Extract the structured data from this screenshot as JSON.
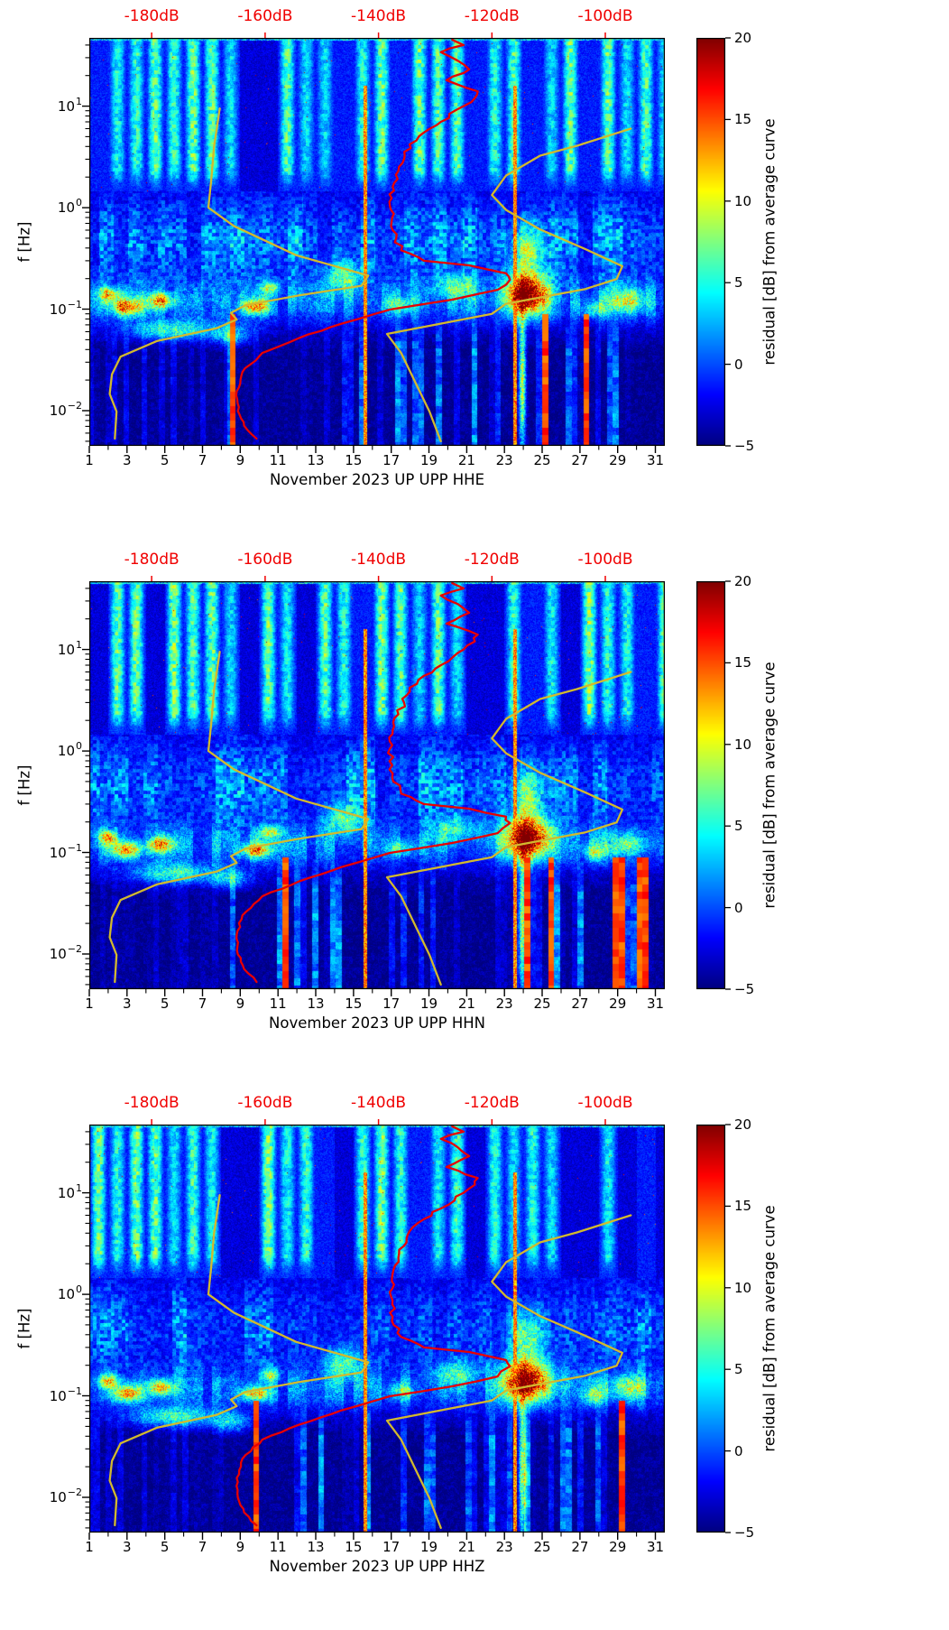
{
  "chart_data": {
    "type": "heatmap",
    "shared": {
      "ylabel": "f [Hz]",
      "y_scale": "log",
      "f_range_hz": [
        0.0045,
        47
      ],
      "x_range_days": [
        1,
        31.5
      ],
      "x_ticks": [
        1,
        3,
        5,
        7,
        9,
        11,
        13,
        15,
        17,
        19,
        21,
        23,
        25,
        27,
        29,
        31
      ],
      "y_ticks": [
        {
          "value": 10,
          "base": "10",
          "exp": "1"
        },
        {
          "value": 1,
          "base": "10",
          "exp": "0"
        },
        {
          "value": 0.1,
          "base": "10",
          "exp": "−1"
        },
        {
          "value": 0.01,
          "base": "10",
          "exp": "−2"
        }
      ],
      "top_axis": {
        "color": "#f00000",
        "db_axis_range": [
          -191,
          -89.5
        ],
        "ticks": [
          {
            "db": -180,
            "label": "-180dB"
          },
          {
            "db": -160,
            "label": "-160dB"
          },
          {
            "db": -140,
            "label": "-140dB"
          },
          {
            "db": -120,
            "label": "-120dB"
          },
          {
            "db": -100,
            "label": "-100dB"
          }
        ]
      },
      "colorbar": {
        "label": "residual [dB] from average curve",
        "colormap": "jet",
        "range": [
          -5,
          20
        ],
        "ticks": [
          {
            "value": 20,
            "label": "20"
          },
          {
            "value": 15,
            "label": "15"
          },
          {
            "value": 10,
            "label": "10"
          },
          {
            "value": 5,
            "label": "5"
          },
          {
            "value": 0,
            "label": "0"
          },
          {
            "value": -5,
            "label": "−5"
          }
        ]
      },
      "curves": {
        "average_psd": {
          "color": "#e80000",
          "width": 2.3,
          "points_db_f": [
            [
              -127,
              45
            ],
            [
              -125,
              40
            ],
            [
              -129,
              34
            ],
            [
              -126,
              28
            ],
            [
              -124,
              23
            ],
            [
              -128,
              18
            ],
            [
              -122.5,
              14
            ],
            [
              -123,
              12
            ],
            [
              -125,
              10
            ],
            [
              -129,
              7.0
            ],
            [
              -132,
              5.5
            ],
            [
              -134.5,
              4.2
            ],
            [
              -135.5,
              3.0
            ],
            [
              -136.5,
              2.3
            ],
            [
              -137.5,
              1.6
            ],
            [
              -138,
              1.05
            ],
            [
              -137.5,
              0.6
            ],
            [
              -136,
              0.38
            ],
            [
              -132,
              0.3
            ],
            [
              -124,
              0.27
            ],
            [
              -117.5,
              0.225
            ],
            [
              -116.8,
              0.195
            ],
            [
              -119,
              0.155
            ],
            [
              -127,
              0.124
            ],
            [
              -138,
              0.099
            ],
            [
              -146.5,
              0.072
            ],
            [
              -154,
              0.052
            ],
            [
              -160.5,
              0.037
            ],
            [
              -164,
              0.024
            ],
            [
              -165,
              0.0155
            ],
            [
              -164.8,
              0.0099
            ],
            [
              -163.7,
              0.0071
            ],
            [
              -161.5,
              0.0053
            ]
          ]
        },
        "low_noise_model": {
          "color": "#d2b92e",
          "width": 2.3,
          "points_db_f": [
            [
              -168,
              9.5
            ],
            [
              -169,
              4.0
            ],
            [
              -169.5,
              1.85
            ],
            [
              -170,
              1.0
            ],
            [
              -165.5,
              0.66
            ],
            [
              -154.5,
              0.34
            ],
            [
              -141.8,
              0.214
            ],
            [
              -143,
              0.17
            ],
            [
              -154,
              0.137
            ],
            [
              -163.5,
              0.109
            ],
            [
              -166,
              0.092
            ],
            [
              -165,
              0.079
            ],
            [
              -168.5,
              0.065
            ],
            [
              -179,
              0.0487
            ],
            [
              -185.5,
              0.034
            ],
            [
              -187,
              0.0228
            ],
            [
              -187.4,
              0.0146
            ],
            [
              -186.2,
              0.0098
            ],
            [
              -186.5,
              0.0053
            ]
          ]
        },
        "high_noise_model": {
          "color": "#d2b92e",
          "width": 2.3,
          "points_db_f": [
            [
              -95.5,
              6.0
            ],
            [
              -105,
              4.07
            ],
            [
              -111.5,
              3.25
            ],
            [
              -117.5,
              2.07
            ],
            [
              -120,
              1.33
            ],
            [
              -117.5,
              0.95
            ],
            [
              -111.5,
              0.61
            ],
            [
              -103.5,
              0.39
            ],
            [
              -97,
              0.265
            ],
            [
              -98,
              0.198
            ],
            [
              -103.5,
              0.158
            ],
            [
              -117.5,
              0.113
            ],
            [
              -120,
              0.09
            ],
            [
              -138.5,
              0.057
            ],
            [
              -136,
              0.037
            ],
            [
              -133.5,
              0.019
            ],
            [
              -131,
              0.0098
            ],
            [
              -129,
              0.005
            ]
          ]
        }
      },
      "heatmap_features": {
        "description": "Estimated content of spectrogram: daily vertical noise stripes above ~1.5 Hz, dark band 1-2 Hz, cloudy patches 0.2-1 Hz, bright microseism band 0.08-0.3 Hz with storm hotspots, dark low-frequency region with vertical streaks below 0.06 Hz.",
        "stripe_band_min_hz": 1.45,
        "hotspots_estimated": [
          {
            "day": 24.2,
            "sd": 1.1,
            "f": 0.14,
            "sf": 0.2,
            "amp": 24
          },
          {
            "day": 24.2,
            "sd": 0.9,
            "f": 0.38,
            "sf": 0.25,
            "amp": 8
          },
          {
            "day": 23.95,
            "sd": 0.18,
            "f": 0.02,
            "sf": 0.75,
            "amp": 14
          },
          {
            "day": 3.0,
            "sd": 0.8,
            "f": 0.105,
            "sf": 0.085,
            "amp": 15
          },
          {
            "day": 4.8,
            "sd": 0.7,
            "f": 0.12,
            "sf": 0.08,
            "amp": 13
          },
          {
            "day": 2.0,
            "sd": 0.5,
            "f": 0.14,
            "sf": 0.07,
            "amp": 12
          },
          {
            "day": 9.8,
            "sd": 0.7,
            "f": 0.105,
            "sf": 0.07,
            "amp": 13
          },
          {
            "day": 10.6,
            "sd": 0.5,
            "f": 0.16,
            "sf": 0.06,
            "amp": 8
          },
          {
            "day": 5.5,
            "sd": 2.2,
            "f": 0.062,
            "sf": 0.1,
            "amp": 9
          },
          {
            "day": 8.5,
            "sd": 1.0,
            "f": 0.055,
            "sf": 0.1,
            "amp": 7
          },
          {
            "day": 14.5,
            "sd": 1.0,
            "f": 0.21,
            "sf": 0.16,
            "amp": 8
          },
          {
            "day": 29.5,
            "sd": 0.9,
            "f": 0.12,
            "sf": 0.12,
            "amp": 9
          },
          {
            "day": 27.8,
            "sd": 0.6,
            "f": 0.1,
            "sf": 0.08,
            "amp": 7
          },
          {
            "day": 20.5,
            "sd": 1.2,
            "f": 0.17,
            "sf": 0.12,
            "amp": 6
          },
          {
            "day": 17.5,
            "sd": 0.8,
            "f": 0.11,
            "sf": 0.08,
            "amp": 6
          }
        ],
        "event_line_days": [
          15.62,
          23.55
        ]
      }
    },
    "panels": [
      {
        "station": "UP UPP",
        "channel": "HHE",
        "xlabel": "November 2023 UP UPP  HHE",
        "noise_seed": 11
      },
      {
        "station": "UP UPP",
        "channel": "HHN",
        "xlabel": "November 2023 UP UPP  HHN",
        "noise_seed": 22
      },
      {
        "station": "UP UPP",
        "channel": "HHZ",
        "xlabel": "November 2023 UP UPP  HHZ",
        "noise_seed": 33
      }
    ]
  }
}
